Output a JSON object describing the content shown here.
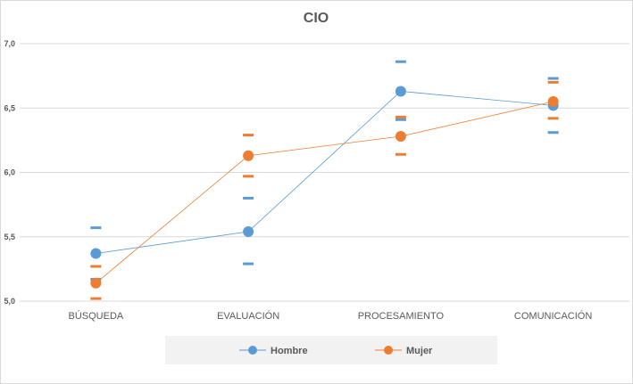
{
  "chart_data": {
    "type": "line",
    "title": "CIO",
    "xlabel": "",
    "ylabel": "",
    "categories": [
      "BÚSQUEDA",
      "EVALUACIÓN",
      "PROCESAMIENTO",
      "COMUNICACIÓN"
    ],
    "ylim": [
      5.0,
      7.0
    ],
    "yticks": [
      "5,0",
      "5,5",
      "6,0",
      "6,5",
      "7,0"
    ],
    "grid": true,
    "legend_position": "bottom",
    "series": [
      {
        "name": "Hombre",
        "color": "#5b9bd5",
        "values": [
          5.37,
          5.54,
          6.63,
          6.52
        ],
        "upper": [
          5.57,
          5.8,
          6.86,
          6.73
        ],
        "lower": [
          5.17,
          5.29,
          6.41,
          6.31
        ]
      },
      {
        "name": "Mujer",
        "color": "#ed7d31",
        "values": [
          5.14,
          6.13,
          6.28,
          6.55
        ],
        "upper": [
          5.27,
          6.29,
          6.43,
          6.7
        ],
        "lower": [
          5.02,
          5.97,
          6.14,
          6.42
        ]
      }
    ]
  }
}
